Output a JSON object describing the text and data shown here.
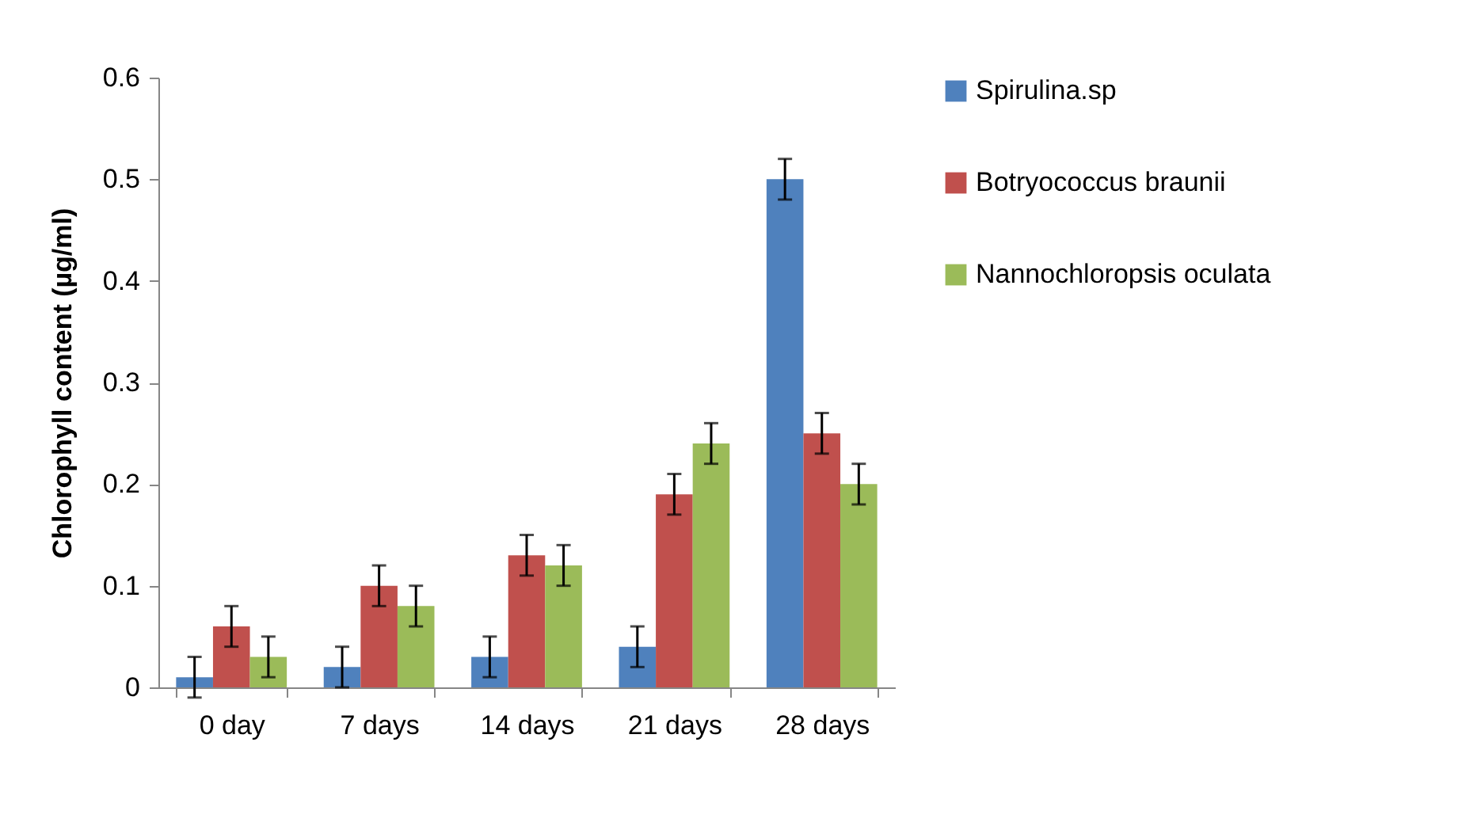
{
  "chart_data": {
    "type": "bar",
    "ylabel": "Chlorophyll content (µg/ml)",
    "categories": [
      "0 day",
      "7 days",
      "14 days",
      "21 days",
      "28 days"
    ],
    "series": [
      {
        "name": "Spirulina.sp",
        "color": "#4f81bd",
        "values": [
          0.01,
          0.02,
          0.03,
          0.04,
          0.5
        ],
        "errors": [
          0.02,
          0.02,
          0.02,
          0.02,
          0.02
        ]
      },
      {
        "name": "Botryococcus braunii",
        "color": "#c0504d",
        "values": [
          0.06,
          0.1,
          0.13,
          0.19,
          0.25
        ],
        "errors": [
          0.02,
          0.02,
          0.02,
          0.02,
          0.02
        ]
      },
      {
        "name": "Nannochloropsis oculata",
        "color": "#9bbb59",
        "values": [
          0.03,
          0.08,
          0.12,
          0.24,
          0.2
        ],
        "errors": [
          0.02,
          0.02,
          0.02,
          0.02,
          0.02
        ]
      }
    ],
    "ylim": [
      0,
      0.6
    ],
    "yticks": [
      0,
      0.1,
      0.2,
      0.3,
      0.4,
      0.5,
      0.6
    ],
    "grid": false,
    "legend": "right"
  }
}
